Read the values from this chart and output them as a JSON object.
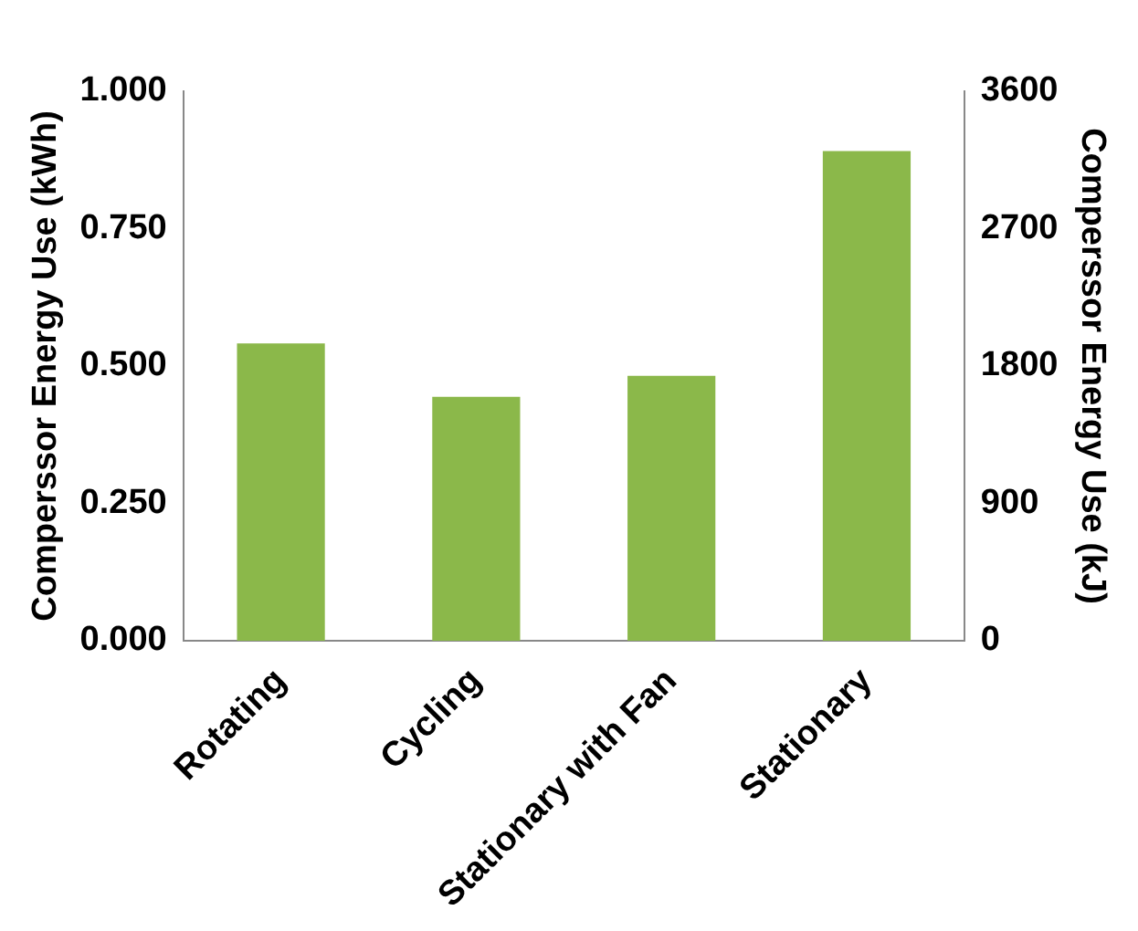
{
  "chart_data": {
    "type": "bar",
    "categories": [
      "Rotating",
      "Cycling",
      "Stationary with Fan",
      "Stationary"
    ],
    "values": [
      0.541,
      0.444,
      0.482,
      0.891
    ],
    "color": "#8bb84a",
    "ylabel": "Comperssor Energy Use (kWh)",
    "y2label": "Comperssor Energy Use (kJ)",
    "ylim": [
      0,
      1
    ],
    "yticks": [
      {
        "value": 0,
        "label": "0.000"
      },
      {
        "value": 0.25,
        "label": "0.250"
      },
      {
        "value": 0.5,
        "label": "0.500"
      },
      {
        "value": 0.75,
        "label": "0.750"
      },
      {
        "value": 1,
        "label": "1.000"
      }
    ],
    "y2lim": [
      0,
      3600
    ],
    "y2ticks": [
      0,
      900,
      1800,
      2700,
      3600
    ],
    "grid": false,
    "legend": false
  }
}
